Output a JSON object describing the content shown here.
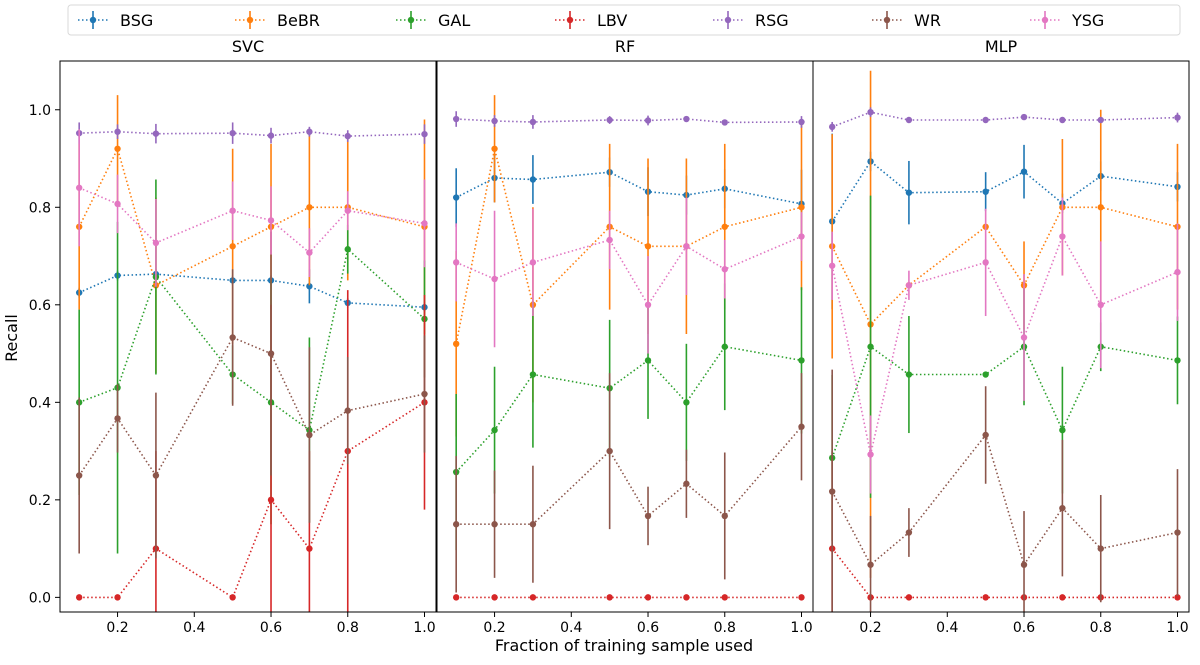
{
  "chart_data": {
    "type": "line",
    "xlabel": "Fraction of training sample used",
    "ylabel": "Recall",
    "xlim": [
      0.05,
      1.03
    ],
    "ylim": [
      -0.03,
      1.1
    ],
    "xticks": [
      "0.2",
      "0.4",
      "0.6",
      "0.8",
      "1.0"
    ],
    "yticks": [
      "0.0",
      "0.2",
      "0.4",
      "0.6",
      "0.8",
      "1.0"
    ],
    "grid": false,
    "legend_position": "top",
    "legend": [
      {
        "name": "BSG",
        "color": "#1f77b4"
      },
      {
        "name": "BeBR",
        "color": "#ff7f0e"
      },
      {
        "name": "GAL",
        "color": "#2ca02c"
      },
      {
        "name": "LBV",
        "color": "#d62728"
      },
      {
        "name": "RSG",
        "color": "#9467bd"
      },
      {
        "name": "WR",
        "color": "#8c564b"
      },
      {
        "name": "YSG",
        "color": "#e377c2"
      }
    ],
    "x": [
      0.1,
      0.2,
      0.3,
      0.5,
      0.6,
      0.7,
      0.8,
      1.0
    ],
    "panels": [
      {
        "title": "SVC",
        "series": [
          {
            "name": "BSG",
            "y": [
              0.625,
              0.66,
              0.663,
              0.65,
              0.65,
              0.638,
              0.604,
              0.595
            ],
            "err": [
              0.01,
              0.01,
              0.01,
              0.01,
              0.01,
              0.035,
              0.01,
              0.01
            ]
          },
          {
            "name": "BeBR",
            "y": [
              0.76,
              0.92,
              0.64,
              0.72,
              0.76,
              0.8,
              0.8,
              0.76
            ],
            "err": [
              0.17,
              0.11,
              0.18,
              0.2,
              0.17,
              0.16,
              0.15,
              0.22
            ]
          },
          {
            "name": "GAL",
            "y": [
              0.4,
              0.43,
              0.657,
              0.457,
              0.4,
              0.343,
              0.714,
              0.571
            ],
            "err": [
              0.19,
              0.34,
              0.2,
              0.06,
              0.25,
              0.19,
              0.05,
              0.12
            ]
          },
          {
            "name": "LBV",
            "y": [
              0.0,
              0.0,
              0.1,
              0.0,
              0.2,
              0.1,
              0.3,
              0.4
            ],
            "err": [
              0.0,
              0.0,
              0.2,
              0.0,
              0.4,
              0.2,
              0.33,
              0.22
            ]
          },
          {
            "name": "RSG",
            "y": [
              0.952,
              0.955,
              0.951,
              0.952,
              0.947,
              0.955,
              0.946,
              0.95
            ],
            "err": [
              0.022,
              0.015,
              0.02,
              0.022,
              0.016,
              0.01,
              0.012,
              0.02
            ]
          },
          {
            "name": "WR",
            "y": [
              0.25,
              0.367,
              0.25,
              0.533,
              0.5,
              0.333,
              0.383,
              0.417
            ],
            "err": [
              0.16,
              0.07,
              0.17,
              0.14,
              0.25,
              0.18,
              0.11,
              0.12
            ]
          },
          {
            "name": "YSG",
            "y": [
              0.84,
              0.807,
              0.727,
              0.793,
              0.773,
              0.707,
              0.793,
              0.767
            ],
            "err": [
              0.12,
              0.06,
              0.09,
              0.06,
              0.07,
              0.05,
              0.04,
              0.09
            ]
          }
        ]
      },
      {
        "title": "RF",
        "series": [
          {
            "name": "BSG",
            "y": [
              0.82,
              0.86,
              0.857,
              0.872,
              0.832,
              0.825,
              0.838,
              0.807
            ],
            "err": [
              0.06,
              0.05,
              0.05,
              0.03,
              0.05,
              0.04,
              0.04,
              0.07
            ]
          },
          {
            "name": "BeBR",
            "y": [
              0.52,
              0.92,
              0.6,
              0.76,
              0.72,
              0.72,
              0.76,
              0.8
            ],
            "err": [
              0.19,
              0.11,
              0.2,
              0.17,
              0.18,
              0.18,
              0.17,
              0.17
            ]
          },
          {
            "name": "GAL",
            "y": [
              0.257,
              0.343,
              0.457,
              0.429,
              0.486,
              0.4,
              0.514,
              0.486
            ],
            "err": [
              0.16,
              0.13,
              0.15,
              0.14,
              0.12,
              0.12,
              0.13,
              0.15
            ]
          },
          {
            "name": "LBV",
            "y": [
              0.0,
              0.0,
              0.0,
              0.0,
              0.0,
              0.0,
              0.0,
              0.0
            ],
            "err": [
              0.0,
              0.0,
              0.0,
              0.0,
              0.0,
              0.0,
              0.0,
              0.0
            ]
          },
          {
            "name": "RSG",
            "y": [
              0.981,
              0.977,
              0.975,
              0.979,
              0.978,
              0.981,
              0.974,
              0.975
            ],
            "err": [
              0.016,
              0.012,
              0.014,
              0.008,
              0.01,
              0.006,
              0.006,
              0.012
            ]
          },
          {
            "name": "WR",
            "y": [
              0.15,
              0.15,
              0.15,
              0.3,
              0.167,
              0.233,
              0.167,
              0.35
            ],
            "err": [
              0.14,
              0.11,
              0.12,
              0.16,
              0.06,
              0.07,
              0.13,
              0.11
            ]
          },
          {
            "name": "YSG",
            "y": [
              0.687,
              0.653,
              0.687,
              0.733,
              0.6,
              0.72,
              0.673,
              0.74
            ],
            "err": [
              0.08,
              0.14,
              0.11,
              0.06,
              0.1,
              0.1,
              0.06,
              0.05
            ]
          }
        ]
      },
      {
        "title": "MLP",
        "series": [
          {
            "name": "BSG",
            "y": [
              0.771,
              0.894,
              0.83,
              0.832,
              0.873,
              0.808,
              0.864,
              0.842
            ],
            "err": [
              0.18,
              0.02,
              0.065,
              0.04,
              0.055,
              0.02,
              0.03,
              0.03
            ]
          },
          {
            "name": "BeBR",
            "y": [
              0.72,
              0.56,
              0.64,
              0.76,
              0.64,
              0.8,
              0.8,
              0.76
            ],
            "err": [
              0.23,
              0.52,
              0.0,
              0.0,
              0.09,
              0.14,
              0.2,
              0.17
            ]
          },
          {
            "name": "GAL",
            "y": [
              0.286,
              0.514,
              0.457,
              0.457,
              0.514,
              0.343,
              0.514,
              0.486
            ],
            "err": [
              0.17,
              0.31,
              0.12,
              0.0,
              0.12,
              0.13,
              0.05,
              0.09
            ]
          },
          {
            "name": "LBV",
            "y": [
              0.1,
              0.0,
              0.0,
              0.0,
              0.0,
              0.0,
              0.0,
              0.0
            ],
            "err": [
              0.2,
              0.0,
              0.0,
              0.0,
              0.0,
              0.0,
              0.0,
              0.0
            ]
          },
          {
            "name": "RSG",
            "y": [
              0.965,
              0.995,
              0.979,
              0.979,
              0.985,
              0.979,
              0.979,
              0.984
            ],
            "err": [
              0.01,
              0.01,
              0.005,
              0.005,
              0.005,
              0.005,
              0.005,
              0.01
            ]
          },
          {
            "name": "WR",
            "y": [
              0.217,
              0.067,
              0.133,
              0.333,
              0.067,
              0.183,
              0.1,
              0.133
            ],
            "err": [
              0.25,
              0.1,
              0.05,
              0.1,
              0.11,
              0.14,
              0.11,
              0.13
            ]
          },
          {
            "name": "YSG",
            "y": [
              0.68,
              0.293,
              0.64,
              0.687,
              0.533,
              0.74,
              0.6,
              0.667
            ],
            "err": [
              0.07,
              0.08,
              0.03,
              0.11,
              0.13,
              0.08,
              0.13,
              0.1
            ]
          }
        ]
      }
    ]
  }
}
